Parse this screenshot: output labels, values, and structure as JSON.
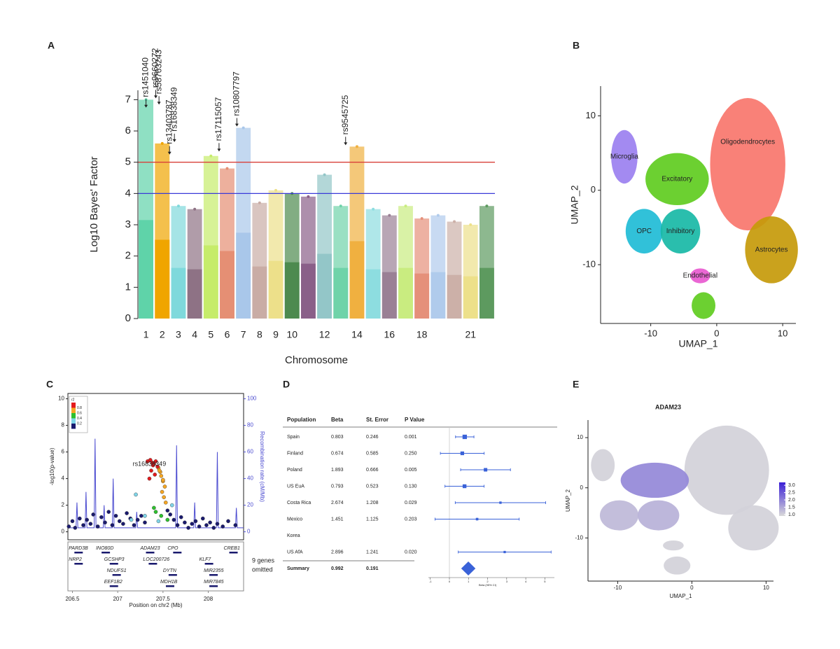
{
  "chart_data": [
    {
      "type": "manhattan",
      "panel": "A",
      "xlabel": "Chromosome",
      "ylabel": "Log10 Bayes' Factor",
      "categories": [
        "1",
        "2",
        "3",
        "4",
        "5",
        "6",
        "7",
        "8",
        "9",
        "10",
        null,
        "12",
        null,
        "14",
        null,
        "16",
        null,
        "18",
        null,
        null,
        "21",
        null
      ],
      "values": [
        7.0,
        5.6,
        3.6,
        3.5,
        5.2,
        4.8,
        6.1,
        3.7,
        4.1,
        4.0,
        3.9,
        4.6,
        3.6,
        5.5,
        3.5,
        3.3,
        3.6,
        3.2,
        3.3,
        3.1,
        3.0,
        3.6
      ],
      "colors": [
        "#5fd3a9",
        "#f0a500",
        "#7fd9dc",
        "#8e7285",
        "#c6ec6a",
        "#e58f74",
        "#a9c7ea",
        "#c9aca5",
        "#ede08a",
        "#4d8a4f",
        "#8a5f89",
        "#93c6c8",
        "#6fd3a9",
        "#f0b040",
        "#8ddde0",
        "#9a8095",
        "#c9ec80",
        "#e5907a",
        "#b0cbec",
        "#ccb0a8",
        "#ede08a",
        "#5d9a5f"
      ],
      "ylim": [
        0,
        7.3
      ],
      "yticks": [
        0,
        1,
        2,
        3,
        4,
        5,
        6,
        7
      ],
      "hlines": [
        {
          "value": 5,
          "color": "#d9403a"
        },
        {
          "value": 4,
          "color": "#3a3ad9"
        }
      ],
      "annotations": [
        {
          "label": "rs1451040",
          "x": 1.0,
          "value": 6.7
        },
        {
          "label": "rs9660272",
          "x": 1.6,
          "value": 7.0
        },
        {
          "label": "rs58763243",
          "x": 1.8,
          "value": 6.8
        },
        {
          "label": "rs13403787",
          "x": 2.45,
          "value": 5.2
        },
        {
          "label": "rs16838349",
          "x": 2.75,
          "value": 5.6
        },
        {
          "label": "rs17115057",
          "x": 5.5,
          "value": 5.3
        },
        {
          "label": "rs10807797",
          "x": 6.6,
          "value": 6.1
        },
        {
          "label": "rs9545725",
          "x": 13.3,
          "value": 5.5
        }
      ]
    },
    {
      "type": "scatter",
      "panel": "B",
      "xlabel": "UMAP_1",
      "ylabel": "UMAP_2",
      "xlim": [
        -17.6,
        12
      ],
      "ylim": [
        -17.9,
        14
      ],
      "xticks": [
        -10,
        0,
        10
      ],
      "yticks": [
        -10,
        0,
        10
      ],
      "series": [
        {
          "name": "Oligodendrocytes",
          "color": "#f8766d",
          "x": 4.7,
          "y": 3.5,
          "rx": 5.7,
          "ry": 8.9
        },
        {
          "name": "Astrocytes",
          "color": "#c59a0a",
          "x": 8.3,
          "y": -8,
          "rx": 4.0,
          "ry": 4.5
        },
        {
          "name": "Microglia",
          "color": "#9b80f0",
          "x": -14,
          "y": 4.5,
          "rx": 2,
          "ry": 3.6
        },
        {
          "name": "Excitatory",
          "color": "#5fcc1f",
          "x": -6,
          "y": 1.5,
          "rx": 4.8,
          "ry": 3.5
        },
        {
          "name": "OPC",
          "color": "#1fbcd6",
          "x": -11,
          "y": -5.5,
          "rx": 2.8,
          "ry": 3
        },
        {
          "name": "Inhibitory",
          "color": "#18b8a6",
          "x": -5.5,
          "y": -5.5,
          "rx": 3,
          "ry": 3
        },
        {
          "name": "Endothelial",
          "color": "#e85ad0",
          "x": -2.5,
          "y": -11.5,
          "rx": 1.5,
          "ry": 1
        },
        {
          "name": null,
          "color": "#5fcc1f",
          "x": -2,
          "y": -15.5,
          "rx": 1.8,
          "ry": 1.8
        }
      ]
    },
    {
      "type": "locus",
      "panel": "C",
      "xlabel": "Position on chr2 (Mb)",
      "ylabel": "-log10(p-value)",
      "y2label": "Recombination rate (cM/Mb)",
      "xlim": [
        206.45,
        208.39
      ],
      "xticks": [
        206.5,
        207,
        207.5,
        208
      ],
      "ylim": [
        -0.6,
        10.4
      ],
      "yticks": [
        0,
        2,
        4,
        6,
        8,
        10
      ],
      "y2lim": [
        -6,
        104
      ],
      "y2ticks": [
        0,
        20,
        40,
        60,
        80,
        100
      ],
      "y2color": "#4b4bd0",
      "lead": {
        "label": "rs16838349",
        "x": 207.35,
        "value": 5.6
      },
      "legend": {
        "title": "r2",
        "labels": [
          0.8,
          0.6,
          0.4,
          0.2
        ],
        "colors": [
          "#e31a1c",
          "#f5a623",
          "#2ec02e",
          "#7fd4e8",
          "#1a1a6e"
        ]
      },
      "series": [
        {
          "color": "#1a1a6e",
          "x": [
            206.46,
            206.5,
            206.53,
            206.58,
            206.62,
            206.66,
            206.7,
            206.73,
            206.78,
            206.82,
            206.86,
            206.9,
            206.94,
            206.98,
            207.02,
            207.06,
            207.1,
            207.14,
            207.18,
            207.22,
            207.26,
            207.3,
            207.55,
            207.58,
            207.62,
            207.66,
            207.7,
            207.74,
            207.78,
            207.82,
            207.86,
            207.9,
            207.94,
            207.98,
            208.02,
            208.06,
            208.1,
            208.16,
            208.22,
            208.3
          ],
          "values": [
            0.4,
            0.8,
            0.3,
            1.0,
            0.5,
            0.9,
            0.6,
            1.3,
            0.4,
            1.1,
            0.7,
            1.5,
            0.5,
            1.2,
            0.8,
            0.6,
            1.4,
            1.0,
            0.5,
            0.9,
            1.2,
            0.7,
            1.6,
            1.3,
            0.9,
            0.5,
            1.1,
            0.7,
            0.3,
            0.6,
            0.8,
            0.4,
            1.0,
            0.5,
            0.7,
            0.3,
            0.6,
            0.4,
            0.8,
            0.5
          ]
        },
        {
          "color": "#7fd4e8",
          "x": [
            207.2,
            207.3,
            207.45,
            207.6,
            207.15
          ],
          "values": [
            2.8,
            1.2,
            0.8,
            2.0,
            0.9
          ]
        },
        {
          "color": "#2ec02e",
          "x": [
            207.4,
            207.48,
            207.55,
            207.42
          ],
          "values": [
            1.8,
            1.2,
            0.9,
            1.5
          ]
        },
        {
          "color": "#f5a623",
          "x": [
            207.45,
            207.47,
            207.48,
            207.5,
            207.52,
            207.49,
            207.51,
            207.46,
            207.53,
            207.5
          ],
          "values": [
            4.8,
            4.5,
            4.2,
            3.8,
            3.4,
            3.0,
            2.6,
            4.6,
            2.2,
            3.9
          ]
        },
        {
          "color": "#e31a1c",
          "x": [
            207.33,
            207.36,
            207.38,
            207.4,
            207.42,
            207.44,
            207.37,
            207.41,
            207.35,
            207.39
          ],
          "values": [
            5.3,
            5.4,
            5.2,
            5.1,
            5.3,
            4.9,
            4.6,
            4.3,
            4.0,
            5.0
          ]
        }
      ],
      "recomb_x": [
        206.45,
        206.54,
        206.55,
        206.56,
        206.64,
        206.65,
        206.66,
        206.74,
        206.75,
        206.76,
        206.84,
        206.85,
        206.86,
        206.94,
        206.95,
        206.96,
        207.2,
        207.21,
        207.22,
        207.64,
        207.65,
        207.66,
        207.84,
        207.85,
        207.86,
        208.09,
        208.1,
        208.11,
        208.3,
        208.31,
        208.32,
        208.39
      ],
      "recomb_y2": [
        3,
        3,
        22,
        3,
        3,
        30,
        3,
        3,
        70,
        3,
        3,
        20,
        3,
        3,
        40,
        3,
        3,
        15,
        3,
        3,
        65,
        3,
        3,
        22,
        3,
        3,
        60,
        3,
        3,
        18,
        3,
        3
      ],
      "genes": [
        [
          {
            "label": "PARD3B",
            "x": 206.46
          },
          {
            "label": "INO80D",
            "x": 206.76
          },
          {
            "label": "ADAM23",
            "x": 207.25
          },
          {
            "label": "CPO",
            "x": 207.55
          },
          {
            "label": "CREB1",
            "x": 208.17
          }
        ],
        [
          {
            "label": "NRP2",
            "x": 206.46
          },
          {
            "label": "GCSHP3",
            "x": 206.85
          },
          {
            "label": "LOC200726",
            "x": 207.28
          },
          {
            "label": "KLF7",
            "x": 207.9
          }
        ],
        [
          {
            "label": "NDUFS1",
            "x": 206.88
          },
          {
            "label": "DYTN",
            "x": 207.5
          },
          {
            "label": "MIR2355",
            "x": 207.95
          }
        ],
        [
          {
            "label": "EEF1B2",
            "x": 206.85
          },
          {
            "label": "MDH1B",
            "x": 207.47
          },
          {
            "label": "MIR7845",
            "x": 207.95
          }
        ]
      ],
      "note_lines": [
        "9 genes",
        "omitted"
      ]
    },
    {
      "type": "forest",
      "panel": "D",
      "columns": [
        "Population",
        "Beta",
        "St. Error",
        "P Value"
      ],
      "populations": [
        "Spain",
        "Finland",
        "Poland",
        "US EuA",
        "Costa Rica",
        "Mexico",
        "Korea",
        "US AfA"
      ],
      "beta": [
        0.803,
        0.674,
        1.893,
        0.793,
        2.674,
        1.451,
        null,
        2.896
      ],
      "se": [
        0.246,
        0.585,
        0.666,
        0.523,
        1.208,
        1.125,
        null,
        1.241
      ],
      "p": [
        "0.001",
        "0.250",
        "0.005",
        "0.130",
        "0.029",
        "0.203",
        null,
        "0.020"
      ],
      "summary": {
        "label": "Summary",
        "beta": 0.992,
        "se": 0.191
      },
      "color": "#3a62d8",
      "xlim": [
        -1.1,
        5.5
      ],
      "xticks": [
        -1,
        0,
        1,
        2,
        3,
        4,
        5
      ],
      "xlabel": "Beta (95% CI)"
    },
    {
      "type": "scatter",
      "panel": "E",
      "title": "ADAM23",
      "xlabel": "UMAP_1",
      "ylabel": "UMAP_2",
      "xlim": [
        -14,
        11
      ],
      "ylim": [
        -18.6,
        13.5
      ],
      "xticks": [
        -10,
        0,
        10
      ],
      "yticks": [
        -10,
        0,
        10
      ],
      "colormap": [
        "#d9d9d9",
        "#3b1fd6"
      ],
      "clim": [
        0.9,
        3.2
      ],
      "cticks": [
        {
          "value": 1,
          "label": "1.0"
        },
        1.5,
        {
          "value": 2,
          "label": "2.0"
        },
        2.5,
        {
          "value": 3,
          "label": "3.0"
        }
      ],
      "series": [
        {
          "x": 4.7,
          "y": 3.5,
          "rx": 5.7,
          "ry": 8.9,
          "value": 1.0
        },
        {
          "x": 8.3,
          "y": -8,
          "rx": 3.4,
          "ry": 4.5,
          "value": 1.0
        },
        {
          "x": -12,
          "y": 4.5,
          "rx": 1.6,
          "ry": 3.2,
          "value": 1.0
        },
        {
          "x": -5,
          "y": 1.5,
          "rx": 4.6,
          "ry": 3.5,
          "value": 1.9
        },
        {
          "x": -9.8,
          "y": -5.5,
          "rx": 2.6,
          "ry": 3,
          "value": 1.3
        },
        {
          "x": -4.5,
          "y": -5.5,
          "rx": 2.8,
          "ry": 3,
          "value": 1.4
        },
        {
          "x": -2.5,
          "y": -11.5,
          "rx": 1.4,
          "ry": 1,
          "value": 1.0
        },
        {
          "x": -2,
          "y": -15.5,
          "rx": 1.8,
          "ry": 1.8,
          "value": 1.0
        }
      ]
    }
  ]
}
